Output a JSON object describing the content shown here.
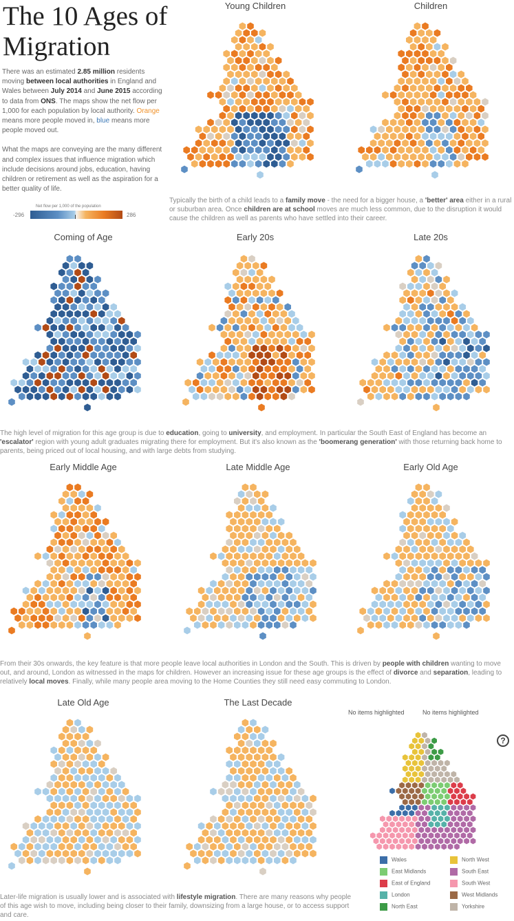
{
  "title": "The 10 Ages of Migration",
  "intro": {
    "p1_a": "There was an estimated ",
    "p1_b": "2.85 million",
    "p1_c": " residents moving ",
    "p1_d": "between local authorities",
    "p1_e": " in England and Wales between ",
    "p1_f": "July 2014",
    "p1_g": " and ",
    "p1_h": "June 2015",
    "p1_i": " according to data from ",
    "p1_j": "ONS",
    "p1_k": ". The maps show the net flow per 1,000 for each population by local authority.",
    "p1_l": "Orange",
    "p1_m": " means more people moved in, ",
    "p1_n": "blue",
    "p1_o": " means more people moved out.",
    "p2": "What the maps are conveying are the many different and complex issues that influence migration which include decisions around jobs, education, having children or retirement as well as the aspiration for a better quality of life."
  },
  "legend": {
    "title": "Net flow per 1,000 of the population",
    "min": "-296",
    "max": "286",
    "colors": [
      "#2f5d93",
      "#5d8fc4",
      "#a8cde8",
      "#f5b460",
      "#ea7b22",
      "#b24b16"
    ]
  },
  "chart_data": [
    {
      "type": "heatmap",
      "title": "Young Children",
      "profile": "young"
    },
    {
      "type": "heatmap",
      "title": "Children",
      "profile": "children"
    },
    {
      "type": "heatmap",
      "title": "Coming of Age",
      "profile": "coming"
    },
    {
      "type": "heatmap",
      "title": "Early 20s",
      "profile": "early20"
    },
    {
      "type": "heatmap",
      "title": "Late 20s",
      "profile": "late20"
    },
    {
      "type": "heatmap",
      "title": "Early Middle Age",
      "profile": "earlymid"
    },
    {
      "type": "heatmap",
      "title": "Late Middle Age",
      "profile": "latemid"
    },
    {
      "type": "heatmap",
      "title": "Early Old Age",
      "profile": "earlyold"
    },
    {
      "type": "heatmap",
      "title": "Late Old Age",
      "profile": "lateold"
    },
    {
      "type": "heatmap",
      "title": "The Last Decade",
      "profile": "lastdecade"
    }
  ],
  "captions": {
    "c1": {
      "a": "Typically the birth of a child leads to a ",
      "b": "family move",
      "c": " - the need for a bigger house, a ",
      "d": "'better' area",
      "e": " either in a rural or suburban area. Once ",
      "f": "children are at school",
      "g": " moves are much less common, due to the disruption it would cause the children as well as parents who have settled into their career."
    },
    "c2": {
      "a": "The high level of migration for this age group is due to ",
      "b": "education",
      "c": ", going to ",
      "d": "university",
      "e": ", and employment. In particular the South East of England has become an ",
      "f": "'escalator'",
      "g": " region with young adult graduates migrating there for employment. But it's also known as the ",
      "h": "'boomerang generation'",
      "i": " with those returning back home to parents, being priced out of local housing, and with large debts from studying."
    },
    "c3": {
      "a": "From their 30s onwards, the key feature is that more people leave local authorities in London and the South. This is driven by ",
      "b": "people with children",
      "c": " wanting to move out, and around, London as witnessed in the maps for children. However an increasing issue for these age groups is the effect of ",
      "d": "divorce",
      "e": " and ",
      "f": "separation",
      "g": ", leading to relatively ",
      "h": "local moves",
      "i": ". Finally, while many people area moving to the Home Counties they still need easy commuting to London."
    },
    "c4": {
      "a": "Later-life migration is usually lower and is associated with ",
      "b": "lifestyle migration",
      "c": ". There are many reasons why people of this age wish to move, including being closer to their family, downsizing from a large house, or to access support and care."
    }
  },
  "highlight": {
    "label1": "No items highlighted",
    "label2": "No items highlighted",
    "help": "?"
  },
  "regions": [
    {
      "name": "Wales",
      "color": "#3c6ea8"
    },
    {
      "name": "North West",
      "color": "#e8c33a"
    },
    {
      "name": "East Midlands",
      "color": "#7ccc72"
    },
    {
      "name": "South East",
      "color": "#b06aa6"
    },
    {
      "name": "East of England",
      "color": "#dc3d4a"
    },
    {
      "name": "South West",
      "color": "#f597ad"
    },
    {
      "name": "London",
      "color": "#56b2a8"
    },
    {
      "name": "West Midlands",
      "color": "#9b6946"
    },
    {
      "name": "North East",
      "color": "#3c9b46"
    },
    {
      "name": "Yorkshire",
      "color": "#bfb4a8"
    }
  ]
}
